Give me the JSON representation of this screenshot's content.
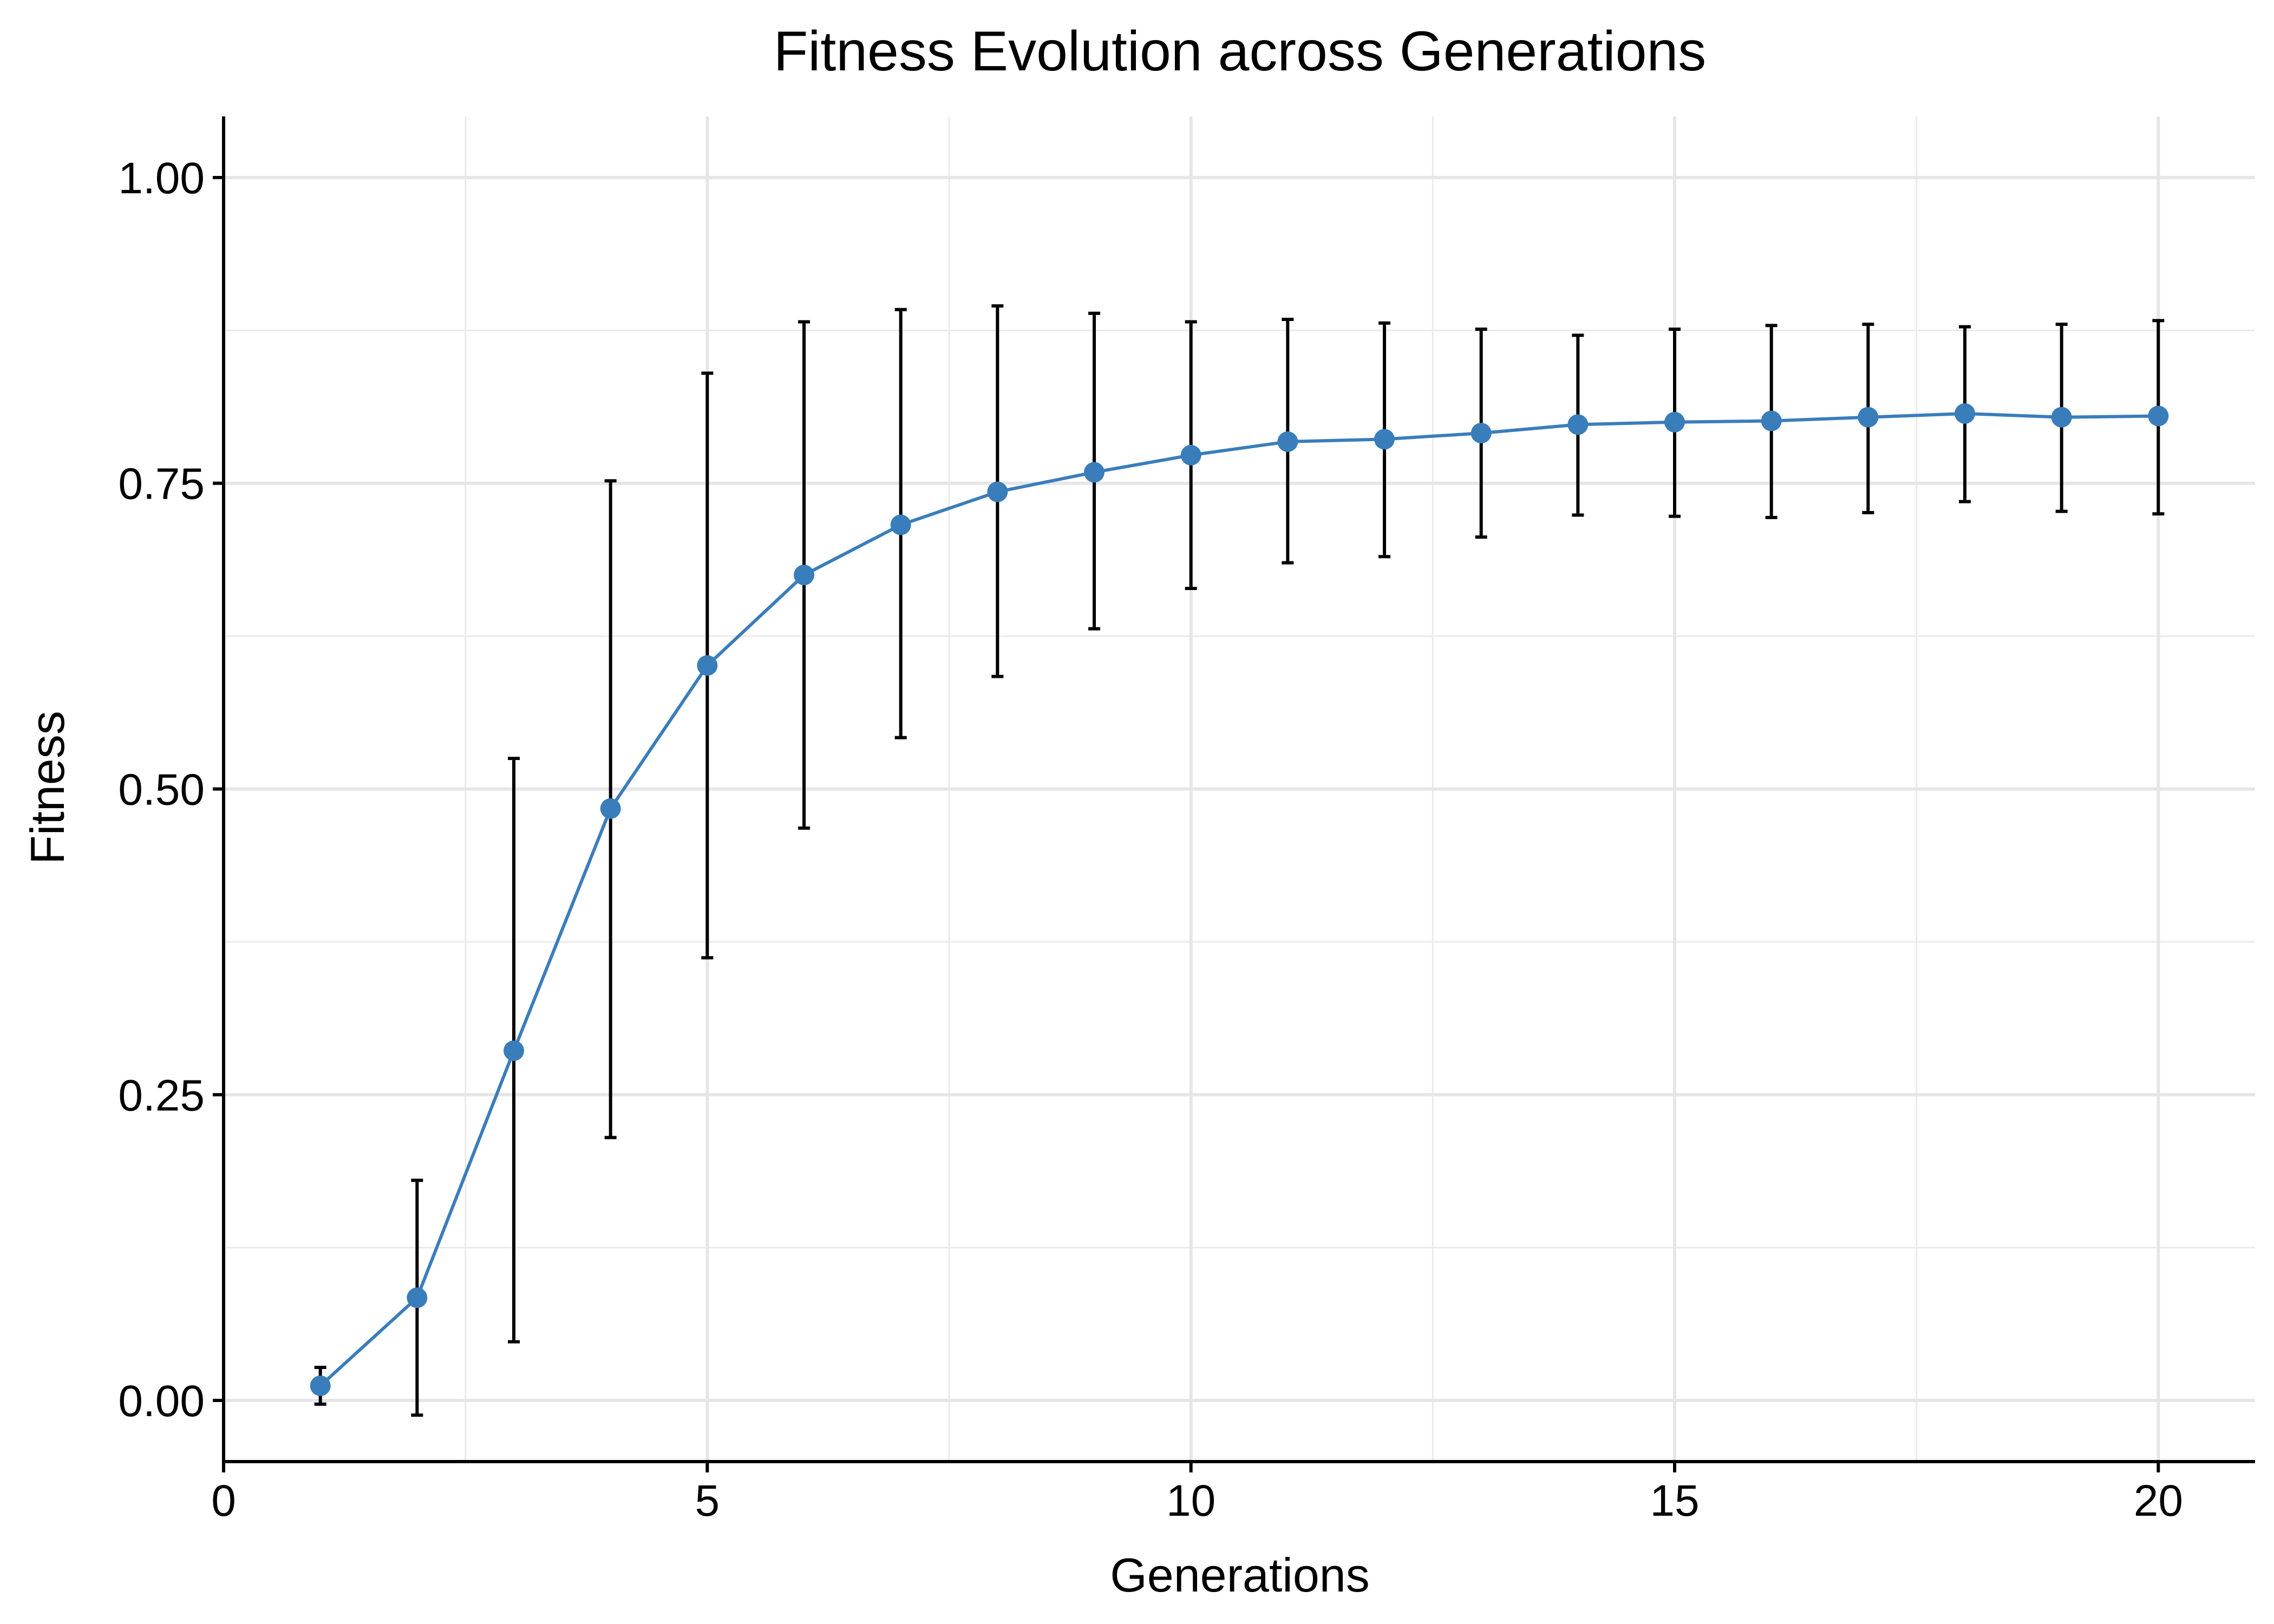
{
  "chart_data": {
    "type": "line",
    "title": "Fitness Evolution across Generations",
    "xlabel": "Generations",
    "ylabel": "Fitness",
    "xlim": [
      0,
      21
    ],
    "ylim": [
      -0.05,
      1.05
    ],
    "xticks": [
      0,
      5,
      10,
      15,
      20
    ],
    "xtick_labels": [
      "0",
      "5",
      "10",
      "15",
      "20"
    ],
    "yticks": [
      0,
      0.25,
      0.5,
      0.75,
      1.0
    ],
    "ytick_labels": [
      "0.00",
      "0.25",
      "0.50",
      "0.75",
      "1.00"
    ],
    "grid": true,
    "series": [
      {
        "color": "#3a7dbb",
        "x": [
          1,
          2,
          3,
          4,
          5,
          6,
          7,
          8,
          9,
          10,
          11,
          12,
          13,
          14,
          15,
          16,
          17,
          18,
          19,
          20
        ],
        "y": [
          0.012,
          0.084,
          0.286,
          0.484,
          0.601,
          0.675,
          0.716,
          0.743,
          0.759,
          0.773,
          0.784,
          0.786,
          0.791,
          0.798,
          0.8,
          0.801,
          0.804,
          0.807,
          0.804,
          0.805
        ],
        "err_low": [
          -0.003,
          -0.012,
          0.048,
          0.215,
          0.362,
          0.468,
          0.542,
          0.592,
          0.631,
          0.664,
          0.685,
          0.69,
          0.706,
          0.724,
          0.723,
          0.722,
          0.726,
          0.735,
          0.727,
          0.725
        ],
        "err_high": [
          0.027,
          0.18,
          0.525,
          0.752,
          0.84,
          0.882,
          0.892,
          0.895,
          0.889,
          0.882,
          0.884,
          0.881,
          0.876,
          0.871,
          0.876,
          0.879,
          0.88,
          0.878,
          0.88,
          0.883
        ]
      }
    ]
  }
}
